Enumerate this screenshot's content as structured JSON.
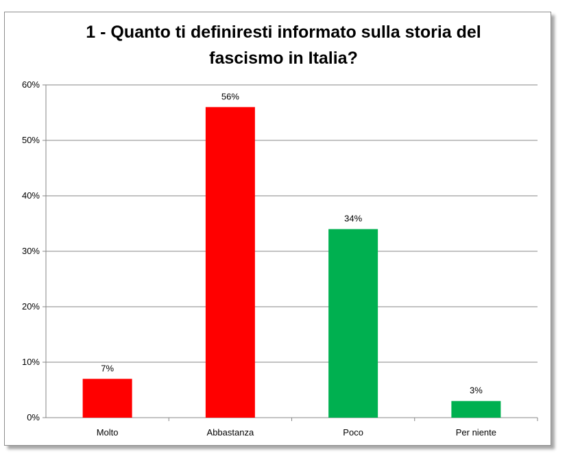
{
  "chart_data": {
    "type": "bar",
    "title_lines": [
      "1 - Quanto ti definiresti informato sulla storia del",
      "fascismo in Italia?"
    ],
    "categories": [
      "Molto",
      "Abbastanza",
      "Poco",
      "Per niente"
    ],
    "values": [
      7,
      56,
      34,
      3
    ],
    "data_labels": [
      "7%",
      "56%",
      "34%",
      "3%"
    ],
    "colors": [
      "#ff0000",
      "#ff0000",
      "#00b050",
      "#00b050"
    ],
    "ylim": [
      0,
      60
    ],
    "yticks": [
      0,
      10,
      20,
      30,
      40,
      50,
      60
    ],
    "ytick_labels": [
      "0%",
      "10%",
      "20%",
      "30%",
      "40%",
      "50%",
      "60%"
    ],
    "grid": true,
    "legend": "none"
  }
}
